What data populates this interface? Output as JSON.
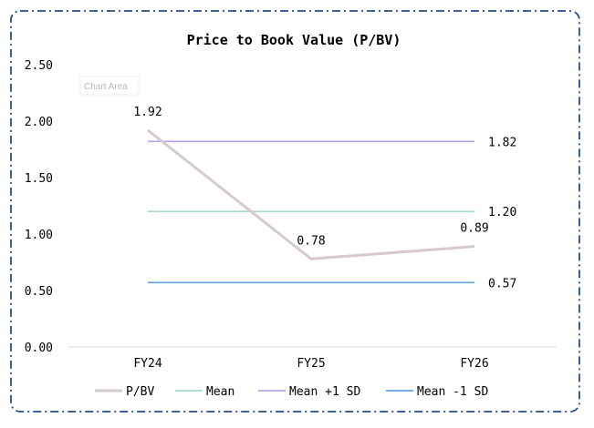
{
  "chart_data": {
    "type": "line",
    "title": "Price to Book Value (P/BV)",
    "categories": [
      "FY24",
      "FY25",
      "FY26"
    ],
    "ylim": [
      0,
      2.5
    ],
    "yticks": [
      0,
      0.5,
      1.0,
      1.5,
      2.0,
      2.5
    ],
    "ytick_labels": [
      "0.00",
      "0.50",
      "1.00",
      "1.50",
      "2.00",
      "2.50"
    ],
    "grid": false,
    "legend_position": "bottom",
    "series": [
      {
        "name": "P/BV",
        "values": [
          1.92,
          0.78,
          0.89
        ],
        "labels": [
          "1.92",
          "0.78",
          "0.89"
        ],
        "color": "#d6cacb"
      },
      {
        "name": "Mean",
        "values": [
          1.2,
          1.2,
          1.2
        ],
        "end_label": "1.20",
        "color": "#a5dcc6"
      },
      {
        "name": "Mean +1 SD",
        "values": [
          1.82,
          1.82,
          1.82
        ],
        "end_label": "1.82",
        "color": "#b1a2e8"
      },
      {
        "name": "Mean -1 SD",
        "values": [
          0.57,
          0.57,
          0.57
        ],
        "end_label": "0.57",
        "color": "#5ea5e4"
      }
    ]
  },
  "tooltip": {
    "text": "Chart Area"
  },
  "colors": {
    "border": "#1f4e8c",
    "axis": "#d9d9d9",
    "text": "#000000"
  }
}
